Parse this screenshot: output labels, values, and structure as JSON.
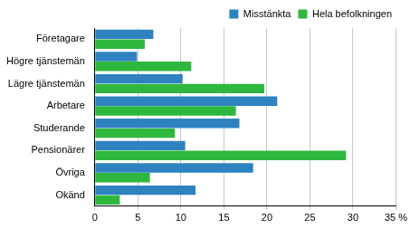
{
  "chart_data": {
    "type": "bar",
    "orientation": "horizontal",
    "categories": [
      "Företagare",
      "Högre tjänstemän",
      "Lägre tjänstemän",
      "Arbetare",
      "Studerande",
      "Pensionärer",
      "Övriga",
      "Okänd"
    ],
    "series": [
      {
        "name": "Misstänkta",
        "color": "#2e82c0",
        "values": [
          6.8,
          4.9,
          10.2,
          21.2,
          16.8,
          10.5,
          18.4,
          11.7
        ]
      },
      {
        "name": "Hela befolkningen",
        "color": "#2db83d",
        "values": [
          5.8,
          11.2,
          19.7,
          16.4,
          9.3,
          29.2,
          6.4,
          2.9
        ]
      }
    ],
    "xlim": [
      0,
      35
    ],
    "xticks": [
      0,
      5,
      10,
      15,
      20,
      25,
      30,
      {
        "value": 35,
        "label": "35 %"
      }
    ],
    "grid": true,
    "legend": "upper right"
  }
}
